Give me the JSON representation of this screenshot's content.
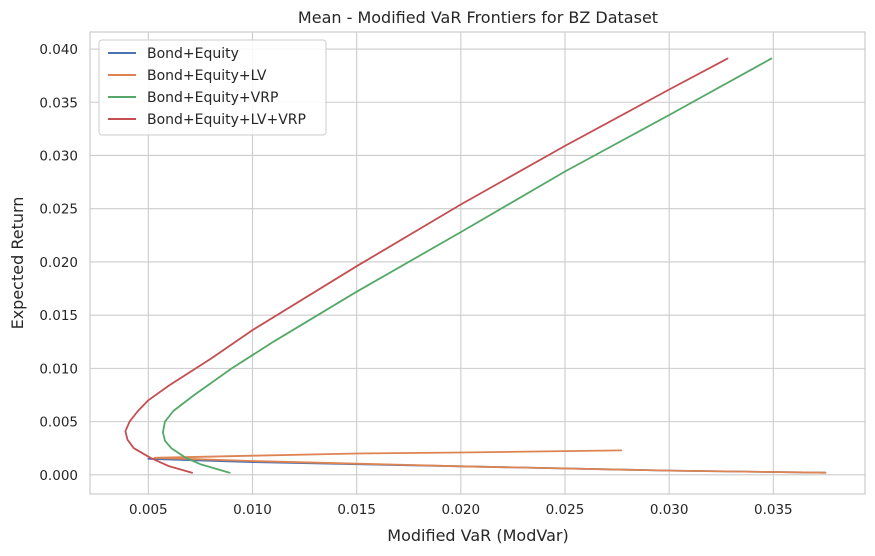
{
  "chart_data": {
    "type": "line",
    "title": "Mean - Modified VaR Frontiers for BZ Dataset",
    "xlabel": "Modified VaR (ModVar)",
    "ylabel": "Expected Return",
    "xlim": [
      0.0022,
      0.0394
    ],
    "ylim": [
      -0.0018,
      0.0416
    ],
    "xticks": [
      0.005,
      0.01,
      0.015,
      0.02,
      0.025,
      0.03,
      0.035
    ],
    "xtick_labels": [
      "0.005",
      "0.010",
      "0.015",
      "0.020",
      "0.025",
      "0.030",
      "0.035"
    ],
    "yticks": [
      0.0,
      0.005,
      0.01,
      0.015,
      0.02,
      0.025,
      0.03,
      0.035,
      0.04
    ],
    "ytick_labels": [
      "0.000",
      "0.005",
      "0.010",
      "0.015",
      "0.020",
      "0.025",
      "0.030",
      "0.035",
      "0.040"
    ],
    "grid": true,
    "legend_position": "top-left",
    "series": [
      {
        "name": "Bond+Equity",
        "color": "#4c72b0",
        "points": [
          [
            0.0375,
            0.0002
          ],
          [
            0.03,
            0.0004
          ],
          [
            0.02,
            0.0008
          ],
          [
            0.01,
            0.0012
          ],
          [
            0.005,
            0.0015
          ]
        ]
      },
      {
        "name": "Bond+Equity+LV",
        "color": "#dd8452",
        "points": [
          [
            0.0375,
            0.0002
          ],
          [
            0.03,
            0.0004
          ],
          [
            0.02,
            0.0008
          ],
          [
            0.01,
            0.0013
          ],
          [
            0.0053,
            0.0016
          ],
          [
            0.01,
            0.0018
          ],
          [
            0.015,
            0.002
          ],
          [
            0.02,
            0.0021
          ],
          [
            0.0277,
            0.0023
          ]
        ]
      },
      {
        "name": "Bond+Equity+VRP",
        "color": "#55a868",
        "points": [
          [
            0.0089,
            0.0002
          ],
          [
            0.0075,
            0.001
          ],
          [
            0.0068,
            0.0016
          ],
          [
            0.0061,
            0.0025
          ],
          [
            0.0058,
            0.0032
          ],
          [
            0.0057,
            0.004
          ],
          [
            0.0058,
            0.005
          ],
          [
            0.0062,
            0.006
          ],
          [
            0.0072,
            0.0075
          ],
          [
            0.009,
            0.01
          ],
          [
            0.011,
            0.0125
          ],
          [
            0.015,
            0.0172
          ],
          [
            0.02,
            0.0228
          ],
          [
            0.025,
            0.0285
          ],
          [
            0.03,
            0.0338
          ],
          [
            0.0349,
            0.0391
          ]
        ]
      },
      {
        "name": "Bond+Equity+LV+VRP",
        "color": "#c44e52",
        "points": [
          [
            0.0071,
            0.0002
          ],
          [
            0.006,
            0.0008
          ],
          [
            0.0051,
            0.0016
          ],
          [
            0.0043,
            0.0025
          ],
          [
            0.004,
            0.0033
          ],
          [
            0.0039,
            0.0041
          ],
          [
            0.0041,
            0.005
          ],
          [
            0.0045,
            0.006
          ],
          [
            0.005,
            0.007
          ],
          [
            0.006,
            0.0084
          ],
          [
            0.008,
            0.0109
          ],
          [
            0.01,
            0.0136
          ],
          [
            0.015,
            0.0196
          ],
          [
            0.02,
            0.0254
          ],
          [
            0.025,
            0.0309
          ],
          [
            0.03,
            0.0362
          ],
          [
            0.0328,
            0.0391
          ]
        ]
      }
    ]
  }
}
